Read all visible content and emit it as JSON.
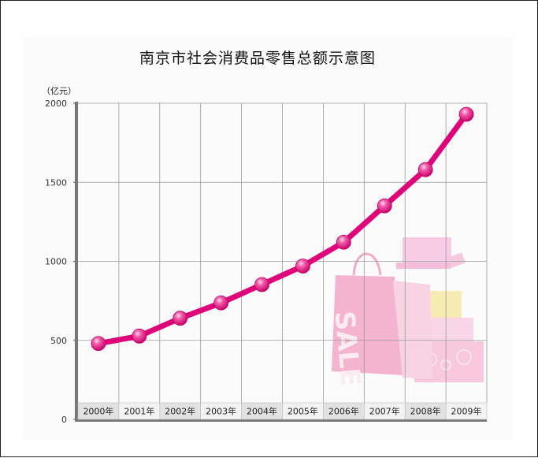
{
  "chart_data": {
    "type": "line",
    "title": "南京市社会消费品零售总额示意图",
    "ylabel": "（亿元）",
    "xlabel": "",
    "ylim": [
      0,
      2000
    ],
    "yticks": [
      "0",
      "500",
      "1000",
      "1500",
      "2000"
    ],
    "categories": [
      "2000年",
      "2001年",
      "2002年",
      "2003年",
      "2004年",
      "2005年",
      "2006年",
      "2007年",
      "2008年",
      "2009年"
    ],
    "series": [
      {
        "values": [
          480,
          527,
          640,
          737,
          853,
          970,
          1121,
          1351,
          1580,
          1930
        ]
      }
    ],
    "grid": true,
    "legend": "none",
    "colors": {
      "line": "#e0047a",
      "marker": "#f25aa8",
      "grid": "#9a9a9a",
      "axis": "#777777"
    },
    "decoration": {
      "description_icon": "shopping-bags-gift-boxes-sale-illustration",
      "bag_text": "SALE"
    }
  }
}
